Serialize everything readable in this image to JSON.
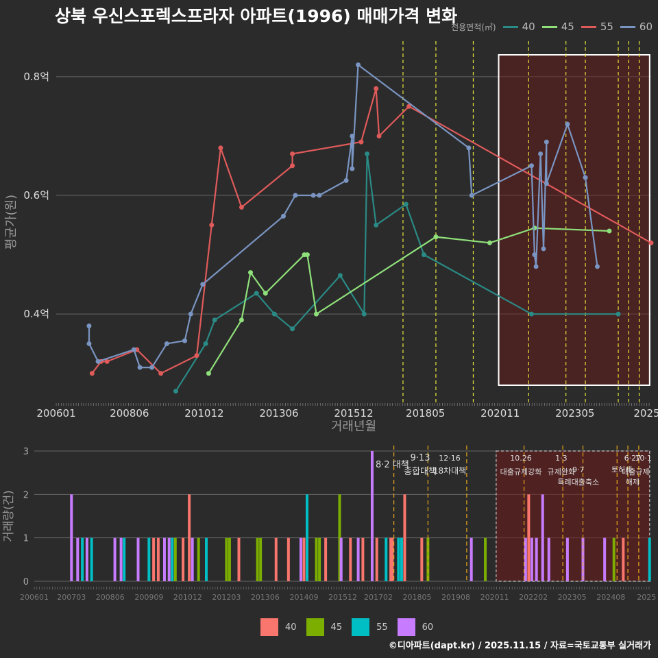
{
  "title": "상북 우신스포렉스프라자 아파트(1996) 매매가격 변화",
  "footer": "©디아파트(dapt.kr) / 2025.11.15 / 자료=국토교통부 실거래가",
  "legend_title": "전용면적(㎡)",
  "colors": {
    "40": "#2a8a85",
    "45": "#8fe07a",
    "55": "#e05a5a",
    "60": "#7a95c2",
    "bar40": "#f8766d",
    "bar45": "#7cae00",
    "bar55": "#00bfc4",
    "bar60": "#c77cff",
    "vline": "#e8e83a",
    "vline2": "#e8a81a"
  },
  "chart_data": [
    {
      "type": "line",
      "xlabel": "거래년월",
      "ylabel": "평균가(원)",
      "ylim": [
        0.25,
        0.86
      ],
      "x_ticks": [
        "200601",
        "200806",
        "201012",
        "201306",
        "201512",
        "201805",
        "202011",
        "202305",
        "2025"
      ],
      "y_ticks": [
        "0.4억",
        "0.6억",
        "0.8억"
      ],
      "y_tick_values": [
        0.4,
        0.6,
        0.8
      ],
      "highlight_range": [
        "2020.75",
        "2025.8"
      ],
      "vlines": [
        2017.6,
        2018.7,
        2019.95,
        2021.8,
        2023.05,
        2023.7,
        2024.8,
        2025.15,
        2025.5
      ],
      "series": [
        {
          "name": "40",
          "points": [
            [
              2010.0,
              0.27
            ],
            [
              2011.0,
              0.35
            ],
            [
              2011.3,
              0.39
            ],
            [
              2012.7,
              0.435
            ],
            [
              2013.3,
              0.4
            ],
            [
              2013.9,
              0.375
            ],
            [
              2015.5,
              0.465
            ],
            [
              2016.3,
              0.4
            ],
            [
              2016.4,
              0.67
            ],
            [
              2016.7,
              0.55
            ],
            [
              2017.7,
              0.585
            ],
            [
              2018.3,
              0.5
            ],
            [
              2021.9,
              0.4
            ],
            [
              2024.8,
              0.4
            ]
          ]
        },
        {
          "name": "45",
          "points": [
            [
              2011.1,
              0.3
            ],
            [
              2012.2,
              0.39
            ],
            [
              2012.5,
              0.47
            ],
            [
              2013.0,
              0.435
            ],
            [
              2014.3,
              0.5
            ],
            [
              2014.4,
              0.5
            ],
            [
              2014.7,
              0.4
            ],
            [
              2018.7,
              0.53
            ],
            [
              2020.5,
              0.52
            ],
            [
              2022.0,
              0.545
            ],
            [
              2024.5,
              0.54
            ]
          ]
        },
        {
          "name": "55",
          "points": [
            [
              2007.2,
              0.3
            ],
            [
              2007.5,
              0.32
            ],
            [
              2007.7,
              0.32
            ],
            [
              2008.7,
              0.34
            ],
            [
              2009.5,
              0.3
            ],
            [
              2010.7,
              0.33
            ],
            [
              2011.2,
              0.55
            ],
            [
              2011.5,
              0.68
            ],
            [
              2012.2,
              0.58
            ],
            [
              2013.9,
              0.65
            ],
            [
              2013.9,
              0.67
            ],
            [
              2016.2,
              0.69
            ],
            [
              2016.7,
              0.78
            ],
            [
              2016.8,
              0.7
            ],
            [
              2017.8,
              0.75
            ],
            [
              2025.9,
              0.52
            ]
          ]
        },
        {
          "name": "60",
          "points": [
            [
              2007.1,
              0.38
            ],
            [
              2007.1,
              0.35
            ],
            [
              2007.4,
              0.32
            ],
            [
              2008.6,
              0.34
            ],
            [
              2008.8,
              0.31
            ],
            [
              2009.2,
              0.31
            ],
            [
              2009.7,
              0.35
            ],
            [
              2010.3,
              0.355
            ],
            [
              2010.5,
              0.4
            ],
            [
              2010.9,
              0.45
            ],
            [
              2013.6,
              0.565
            ],
            [
              2014.0,
              0.6
            ],
            [
              2014.6,
              0.6
            ],
            [
              2014.8,
              0.6
            ],
            [
              2015.7,
              0.625
            ],
            [
              2015.9,
              0.7
            ],
            [
              2015.9,
              0.645
            ],
            [
              2016.1,
              0.82
            ],
            [
              2019.8,
              0.68
            ],
            [
              2019.9,
              0.6
            ],
            [
              2021.9,
              0.65
            ],
            [
              2022.0,
              0.5
            ],
            [
              2022.05,
              0.48
            ],
            [
              2022.2,
              0.67
            ],
            [
              2022.3,
              0.51
            ],
            [
              2022.4,
              0.69
            ],
            [
              2022.4,
              0.62
            ],
            [
              2023.1,
              0.72
            ],
            [
              2023.7,
              0.63
            ],
            [
              2024.1,
              0.48
            ]
          ]
        }
      ]
    },
    {
      "type": "bar",
      "xlabel": "",
      "ylabel": "거래량(건)",
      "ylim": [
        0,
        3
      ],
      "x_ticks": [
        "200601",
        "200703",
        "200806",
        "200909",
        "201012",
        "201203",
        "201306",
        "201409",
        "201512",
        "201702",
        "201805",
        "201908",
        "202011",
        "202202",
        "202305",
        "202408",
        "2025"
      ],
      "y_ticks": [
        "0",
        "1",
        "2",
        "3"
      ],
      "annotations": [
        {
          "date": "8.2 대책",
          "label": "8·2 대책"
        },
        {
          "date": "9·13",
          "label": "9·13"
        },
        {
          "date": "종합대책",
          "label": "종합대책"
        },
        {
          "date": "12·16",
          "label": "12·16"
        },
        {
          "date": "18차대책",
          "label": "18차대책"
        },
        {
          "date": "10.26",
          "label": "10.26"
        },
        {
          "date": "대출규제강화",
          "label": "대출규제강화"
        },
        {
          "date": "1·3",
          "label": "1·3"
        },
        {
          "date": "규제완화",
          "label": "규제완화"
        },
        {
          "date": "9·7",
          "label": "9·7"
        },
        {
          "date": "특례대출축소",
          "label": "특례대출축소"
        },
        {
          "date": "토허제",
          "label": "토허제"
        },
        {
          "date": "해제",
          "label": "해제"
        },
        {
          "date": "6·27",
          "label": "6·27"
        },
        {
          "date": "10·1",
          "label": "10·1"
        },
        {
          "date": "대출규제",
          "label": "대출규제"
        }
      ],
      "bars": [
        {
          "series": "60",
          "x": 2007.2,
          "v": 2
        },
        {
          "series": "60",
          "x": 2007.4,
          "v": 1
        },
        {
          "series": "55",
          "x": 2007.55,
          "v": 1
        },
        {
          "series": "60",
          "x": 2007.7,
          "v": 1
        },
        {
          "series": "55",
          "x": 2007.85,
          "v": 1
        },
        {
          "series": "60",
          "x": 2008.6,
          "v": 1
        },
        {
          "series": "60",
          "x": 2008.8,
          "v": 1
        },
        {
          "series": "55",
          "x": 2008.9,
          "v": 1
        },
        {
          "series": "60",
          "x": 2009.35,
          "v": 1
        },
        {
          "series": "55",
          "x": 2009.7,
          "v": 1
        },
        {
          "series": "40",
          "x": 2009.85,
          "v": 1
        },
        {
          "series": "40",
          "x": 2010.0,
          "v": 1
        },
        {
          "series": "60",
          "x": 2010.2,
          "v": 1
        },
        {
          "series": "60",
          "x": 2010.35,
          "v": 1
        },
        {
          "series": "55",
          "x": 2010.45,
          "v": 1
        },
        {
          "series": "45",
          "x": 2010.55,
          "v": 1
        },
        {
          "series": "40",
          "x": 2010.8,
          "v": 1
        },
        {
          "series": "40",
          "x": 2011.0,
          "v": 2
        },
        {
          "series": "60",
          "x": 2011.1,
          "v": 1
        },
        {
          "series": "45",
          "x": 2011.3,
          "v": 1
        },
        {
          "series": "55",
          "x": 2011.55,
          "v": 1
        },
        {
          "series": "45",
          "x": 2012.2,
          "v": 1
        },
        {
          "series": "45",
          "x": 2012.3,
          "v": 1
        },
        {
          "series": "40",
          "x": 2012.6,
          "v": 1
        },
        {
          "series": "45",
          "x": 2013.2,
          "v": 1
        },
        {
          "series": "45",
          "x": 2013.3,
          "v": 1
        },
        {
          "series": "40",
          "x": 2013.8,
          "v": 1
        },
        {
          "series": "40",
          "x": 2014.2,
          "v": 1
        },
        {
          "series": "60",
          "x": 2014.6,
          "v": 1
        },
        {
          "series": "40",
          "x": 2014.7,
          "v": 1
        },
        {
          "series": "55",
          "x": 2014.8,
          "v": 2
        },
        {
          "series": "45",
          "x": 2015.1,
          "v": 1
        },
        {
          "series": "45",
          "x": 2015.2,
          "v": 1
        },
        {
          "series": "40",
          "x": 2015.4,
          "v": 1
        },
        {
          "series": "45",
          "x": 2015.85,
          "v": 2
        },
        {
          "series": "60",
          "x": 2015.9,
          "v": 1
        },
        {
          "series": "40",
          "x": 2016.2,
          "v": 1
        },
        {
          "series": "60",
          "x": 2016.45,
          "v": 1
        },
        {
          "series": "40",
          "x": 2016.6,
          "v": 1
        },
        {
          "series": "60",
          "x": 2016.9,
          "v": 3
        },
        {
          "series": "40",
          "x": 2017.05,
          "v": 1
        },
        {
          "series": "55",
          "x": 2017.35,
          "v": 1
        },
        {
          "series": "40",
          "x": 2017.5,
          "v": 1
        },
        {
          "series": "40",
          "x": 2017.55,
          "v": 1
        },
        {
          "series": "55",
          "x": 2017.75,
          "v": 1
        },
        {
          "series": "55",
          "x": 2017.85,
          "v": 1
        },
        {
          "series": "40",
          "x": 2017.95,
          "v": 2
        },
        {
          "series": "40",
          "x": 2018.5,
          "v": 1
        },
        {
          "series": "45",
          "x": 2018.7,
          "v": 1
        },
        {
          "series": "60",
          "x": 2020.1,
          "v": 1
        },
        {
          "series": "45",
          "x": 2020.55,
          "v": 1
        },
        {
          "series": "60",
          "x": 2021.85,
          "v": 1
        },
        {
          "series": "40",
          "x": 2021.95,
          "v": 2
        },
        {
          "series": "60",
          "x": 2022.05,
          "v": 1
        },
        {
          "series": "60",
          "x": 2022.2,
          "v": 1
        },
        {
          "series": "60",
          "x": 2022.4,
          "v": 2
        },
        {
          "series": "60",
          "x": 2022.6,
          "v": 1
        },
        {
          "series": "60",
          "x": 2023.2,
          "v": 1
        },
        {
          "series": "60",
          "x": 2023.7,
          "v": 1
        },
        {
          "series": "60",
          "x": 2024.4,
          "v": 1
        },
        {
          "series": "45",
          "x": 2024.7,
          "v": 1
        },
        {
          "series": "40",
          "x": 2025.0,
          "v": 1
        },
        {
          "series": "55",
          "x": 2025.85,
          "v": 1
        }
      ]
    }
  ]
}
